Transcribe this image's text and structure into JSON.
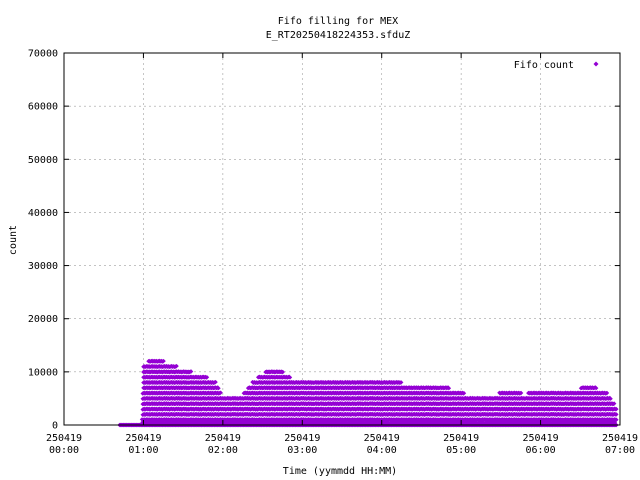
{
  "chart_data": {
    "type": "scatter",
    "title": "Fifo filling for MEX",
    "subtitle": "E_RT20250418224353.sfduZ",
    "xlabel": "Time (yymmdd HH:MM)",
    "ylabel": "count",
    "xlim_hours": [
      0,
      7
    ],
    "ylim": [
      0,
      70000
    ],
    "y_ticks": [
      0,
      10000,
      20000,
      30000,
      40000,
      50000,
      60000,
      70000
    ],
    "x_ticks": [
      {
        "hour": 0,
        "date": "250419",
        "time": "00:00"
      },
      {
        "hour": 1,
        "date": "250419",
        "time": "01:00"
      },
      {
        "hour": 2,
        "date": "250419",
        "time": "02:00"
      },
      {
        "hour": 3,
        "date": "250419",
        "time": "03:00"
      },
      {
        "hour": 4,
        "date": "250419",
        "time": "04:00"
      },
      {
        "hour": 5,
        "date": "250419",
        "time": "05:00"
      },
      {
        "hour": 6,
        "date": "250419",
        "time": "06:00"
      },
      {
        "hour": 7,
        "date": "250419",
        "time": "07:00"
      }
    ],
    "grid": true,
    "legend_position": "top-right",
    "series": [
      {
        "name": "Fifo count",
        "color": "#9400d3",
        "marker": "diamond",
        "t_start_hours": 0.7,
        "t_end_hours": 6.96,
        "envelope": [
          {
            "t": 0.7,
            "max": 0
          },
          {
            "t": 0.98,
            "max": 0
          },
          {
            "t": 1.0,
            "max": 11500
          },
          {
            "t": 1.12,
            "max": 12600
          },
          {
            "t": 1.3,
            "max": 11800
          },
          {
            "t": 1.5,
            "max": 10500
          },
          {
            "t": 1.7,
            "max": 9500
          },
          {
            "t": 1.9,
            "max": 8500
          },
          {
            "t": 2.0,
            "max": 5200
          },
          {
            "t": 2.2,
            "max": 5000
          },
          {
            "t": 2.4,
            "max": 8500
          },
          {
            "t": 2.55,
            "max": 10200
          },
          {
            "t": 2.7,
            "max": 10600
          },
          {
            "t": 2.85,
            "max": 9000
          },
          {
            "t": 3.0,
            "max": 8800
          },
          {
            "t": 3.5,
            "max": 8500
          },
          {
            "t": 4.0,
            "max": 8200
          },
          {
            "t": 4.5,
            "max": 7800
          },
          {
            "t": 4.8,
            "max": 7300
          },
          {
            "t": 5.0,
            "max": 6200
          },
          {
            "t": 5.2,
            "max": 5200
          },
          {
            "t": 5.4,
            "max": 5500
          },
          {
            "t": 5.6,
            "max": 6800
          },
          {
            "t": 5.8,
            "max": 5800
          },
          {
            "t": 6.0,
            "max": 6800
          },
          {
            "t": 6.3,
            "max": 6600
          },
          {
            "t": 6.6,
            "max": 7200
          },
          {
            "t": 6.8,
            "max": 6800
          },
          {
            "t": 6.96,
            "max": 3500
          }
        ]
      }
    ]
  }
}
